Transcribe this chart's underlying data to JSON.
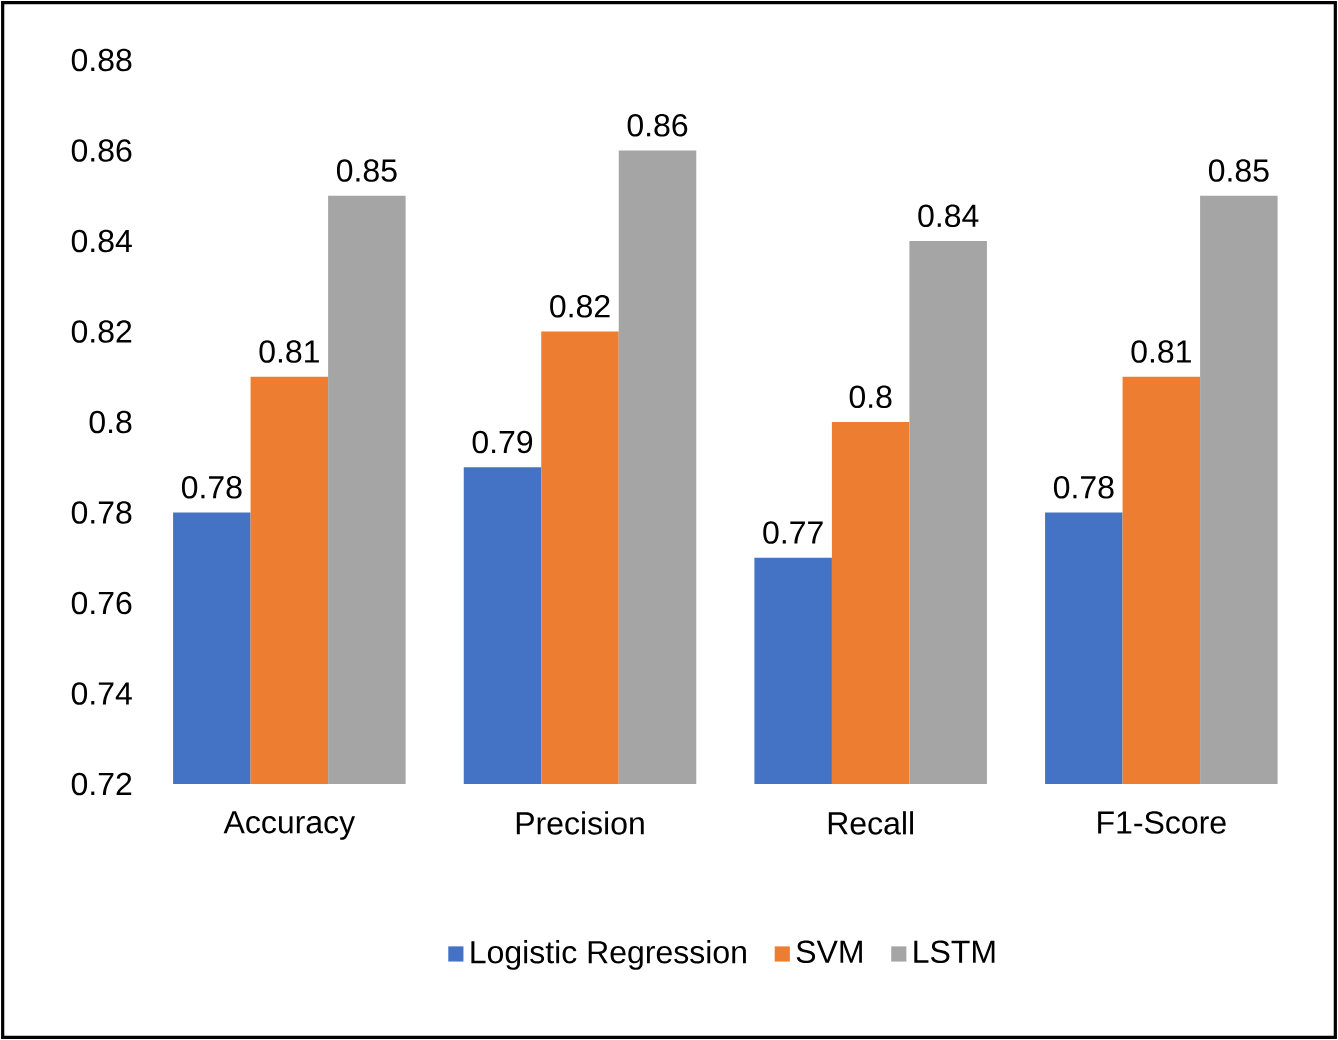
{
  "chart_data": {
    "type": "bar",
    "categories": [
      "Accuracy",
      "Precision",
      "Recall",
      "F1-Score"
    ],
    "series": [
      {
        "name": "Logistic Regression",
        "color": "#4472c4",
        "values": [
          0.78,
          0.79,
          0.77,
          0.78
        ]
      },
      {
        "name": "SVM",
        "color": "#ed7d31",
        "values": [
          0.81,
          0.82,
          0.8,
          0.81
        ]
      },
      {
        "name": "LSTM",
        "color": "#a5a5a5",
        "values": [
          0.85,
          0.86,
          0.84,
          0.85
        ]
      }
    ],
    "ylim": [
      0.72,
      0.88
    ],
    "yticks": [
      0.72,
      0.74,
      0.76,
      0.78,
      0.8,
      0.82,
      0.84,
      0.86,
      0.88
    ],
    "data_labels": true,
    "legend": "bottom",
    "grid": false
  }
}
